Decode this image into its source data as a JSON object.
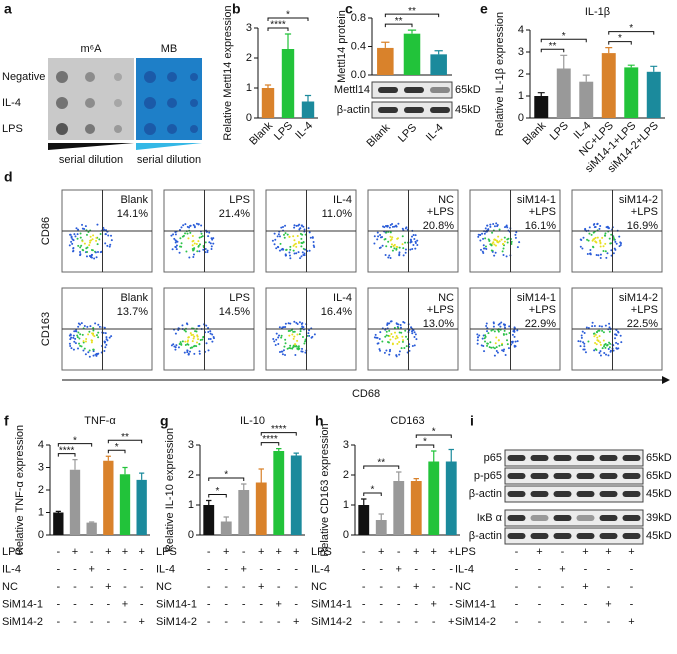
{
  "chart_data": [
    {
      "type": "bar",
      "panel": "b",
      "ylabel": "Relative Mettl14 expression",
      "categories": [
        "Blank",
        "LPS",
        "IL-4"
      ],
      "values": [
        1.0,
        2.3,
        0.55
      ],
      "errors": [
        0.1,
        0.5,
        0.2
      ],
      "colors": [
        "#d9822b",
        "#22c33a",
        "#1b8a9c"
      ],
      "ylim": [
        0,
        3
      ],
      "yticks": [
        0,
        1,
        2,
        3
      ],
      "significance": [
        {
          "label": "****",
          "pair": [
            0,
            1
          ]
        },
        {
          "label": "*",
          "pair": [
            0,
            2
          ]
        }
      ]
    },
    {
      "type": "bar",
      "panel": "c",
      "ylabel": "Mettl14 protein",
      "categories": [
        "Blank",
        "LPS",
        "IL-4"
      ],
      "values": [
        0.38,
        0.58,
        0.29
      ],
      "errors": [
        0.08,
        0.05,
        0.05
      ],
      "colors": [
        "#d9822b",
        "#22c33a",
        "#1b8a9c"
      ],
      "ylim": [
        0,
        0.8
      ],
      "yticks": [
        {
          "value": 0,
          "label": "0.0"
        },
        0.4,
        0.8
      ],
      "significance": [
        {
          "label": "**",
          "pair": [
            0,
            1
          ]
        },
        {
          "label": "**",
          "pair": [
            0,
            2
          ]
        }
      ],
      "blot": {
        "rows": [
          "Mettl14",
          "β-actin"
        ],
        "sizes": [
          "65kD",
          "45kD"
        ]
      }
    },
    {
      "type": "bar",
      "panel": "e",
      "title": "IL-1β",
      "ylabel": "Relative IL-1β expression",
      "categories": [
        "Blank",
        "LPS",
        "IL-4",
        "NC+LPS",
        "siM14-1+LPS",
        "siM14-2+LPS"
      ],
      "values": [
        1.0,
        2.25,
        1.65,
        2.95,
        2.3,
        2.1
      ],
      "errors": [
        0.15,
        0.6,
        0.3,
        0.25,
        0.1,
        0.25
      ],
      "colors": [
        "#111111",
        "#999999",
        "#999999",
        "#d9822b",
        "#22c33a",
        "#1b8a9c"
      ],
      "ylim": [
        0,
        4
      ],
      "yticks": [
        0,
        1,
        2,
        3,
        4
      ],
      "significance": [
        {
          "label": "**",
          "pair": [
            0,
            1
          ]
        },
        {
          "label": "*",
          "pair": [
            0,
            2
          ]
        },
        {
          "label": "*",
          "pair": [
            3,
            4
          ]
        },
        {
          "label": "*",
          "pair": [
            3,
            5
          ]
        }
      ]
    },
    {
      "type": "bar",
      "panel": "f",
      "title": "TNF-α",
      "ylabel": "Relative TNF-α expression",
      "values": [
        1.0,
        2.9,
        0.55,
        3.3,
        2.7,
        2.45
      ],
      "errors": [
        0.05,
        0.45,
        0.03,
        0.2,
        0.3,
        0.3
      ],
      "colors": [
        "#111111",
        "#999999",
        "#999999",
        "#d9822b",
        "#22c33a",
        "#1b8a9c"
      ],
      "ylim": [
        0,
        4
      ],
      "yticks": [
        0,
        1,
        2,
        3,
        4
      ],
      "significance": [
        {
          "label": "****",
          "pair": [
            0,
            1
          ]
        },
        {
          "label": "*",
          "pair": [
            0,
            2
          ]
        },
        {
          "label": "*",
          "pair": [
            3,
            4
          ]
        },
        {
          "label": "**",
          "pair": [
            3,
            5
          ]
        }
      ]
    },
    {
      "type": "bar",
      "panel": "g",
      "title": "IL-10",
      "ylabel": "Relative IL-10 expression",
      "values": [
        1.0,
        0.45,
        1.5,
        1.75,
        2.8,
        2.65
      ],
      "errors": [
        0.15,
        0.15,
        0.2,
        0.45,
        0.08,
        0.08
      ],
      "colors": [
        "#111111",
        "#999999",
        "#999999",
        "#d9822b",
        "#22c33a",
        "#1b8a9c"
      ],
      "ylim": [
        0,
        3
      ],
      "yticks": [
        0,
        1,
        2,
        3
      ],
      "significance": [
        {
          "label": "*",
          "pair": [
            0,
            1
          ]
        },
        {
          "label": "*",
          "pair": [
            0,
            2
          ]
        },
        {
          "label": "****",
          "pair": [
            3,
            4
          ]
        },
        {
          "label": "****",
          "pair": [
            3,
            5
          ]
        }
      ]
    },
    {
      "type": "bar",
      "panel": "h",
      "title": "CD163",
      "ylabel": "Relative CD163 expression",
      "values": [
        1.0,
        0.5,
        1.8,
        1.8,
        2.45,
        2.45
      ],
      "errors": [
        0.2,
        0.2,
        0.3,
        0.08,
        0.35,
        0.4
      ],
      "colors": [
        "#111111",
        "#999999",
        "#999999",
        "#d9822b",
        "#22c33a",
        "#1b8a9c"
      ],
      "ylim": [
        0,
        3
      ],
      "yticks": [
        0,
        1,
        2,
        3
      ],
      "significance": [
        {
          "label": "*",
          "pair": [
            0,
            1
          ]
        },
        {
          "label": "**",
          "pair": [
            0,
            2
          ]
        },
        {
          "label": "*",
          "pair": [
            3,
            4
          ]
        },
        {
          "label": "*",
          "pair": [
            3,
            5
          ]
        }
      ]
    }
  ],
  "dot_blot": {
    "panel": "a",
    "headers": [
      "m⁶A",
      "MB"
    ],
    "rows": [
      "Negative",
      "IL-4",
      "LPS"
    ],
    "footers": [
      "serial dilution",
      "serial dilution"
    ]
  },
  "flow": {
    "panel": "d",
    "y_labels": [
      "CD86",
      "CD163"
    ],
    "x_label": "CD68",
    "rows": [
      [
        {
          "name": [
            "Blank"
          ],
          "percent": "14.1%"
        },
        {
          "name": [
            "LPS"
          ],
          "percent": "21.4%"
        },
        {
          "name": [
            "IL-4"
          ],
          "percent": "11.0%"
        },
        {
          "name": [
            "NC",
            "+LPS"
          ],
          "percent": "20.8%"
        },
        {
          "name": [
            "siM14-1",
            "+LPS"
          ],
          "percent": "16.1%"
        },
        {
          "name": [
            "siM14-2",
            "+LPS"
          ],
          "percent": "16.9%"
        }
      ],
      [
        {
          "name": [
            "Blank"
          ],
          "percent": "13.7%"
        },
        {
          "name": [
            "LPS"
          ],
          "percent": "14.5%"
        },
        {
          "name": [
            "IL-4"
          ],
          "percent": "16.4%"
        },
        {
          "name": [
            "NC",
            "+LPS"
          ],
          "percent": "13.0%"
        },
        {
          "name": [
            "siM14-1",
            "+LPS"
          ],
          "percent": "22.9%"
        },
        {
          "name": [
            "siM14-2",
            "+LPS"
          ],
          "percent": "22.5%"
        }
      ]
    ]
  },
  "western": {
    "panel": "i",
    "rows": [
      {
        "label": "p65",
        "size": "65kD"
      },
      {
        "label": "p-p65",
        "size": "65kD"
      },
      {
        "label": "β-actin",
        "size": "45kD"
      },
      {
        "label": "IκB α",
        "size": "39kD"
      },
      {
        "label": "β-actin",
        "size": "45kD"
      }
    ]
  },
  "treatment": {
    "rows": [
      {
        "label": "LPS",
        "signs": [
          "-",
          "+",
          "-",
          "+",
          "+",
          "+"
        ]
      },
      {
        "label": "IL-4",
        "signs": [
          "-",
          "-",
          "+",
          "-",
          "-",
          "-"
        ]
      },
      {
        "label": "NC",
        "signs": [
          "-",
          "-",
          "-",
          "+",
          "-",
          "-"
        ]
      },
      {
        "label": "SiM14-1",
        "signs": [
          "-",
          "-",
          "-",
          "-",
          "+",
          "-"
        ]
      },
      {
        "label": "SiM14-2",
        "signs": [
          "-",
          "-",
          "-",
          "-",
          "-",
          "+"
        ]
      }
    ]
  }
}
